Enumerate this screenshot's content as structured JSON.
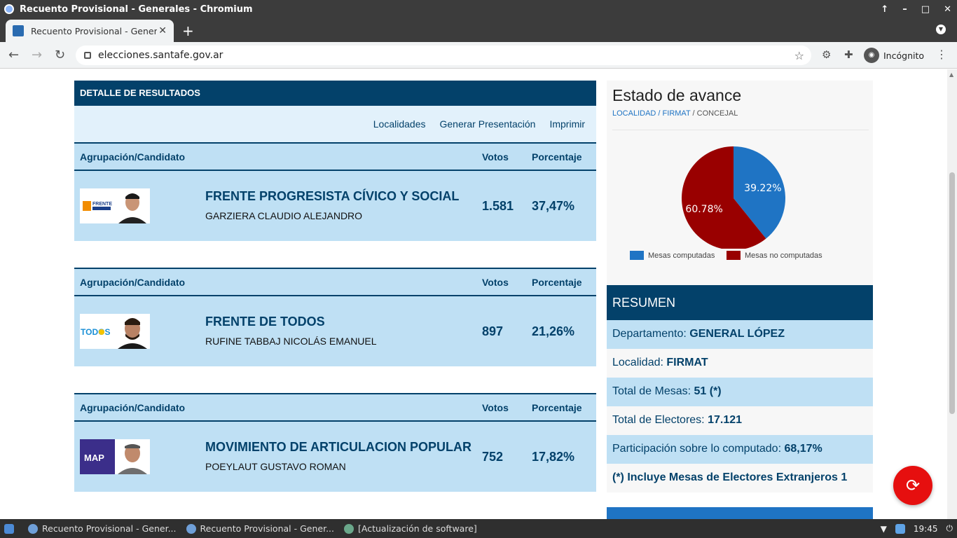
{
  "window": {
    "title": "Recuento Provisional - Generales - Chromium"
  },
  "browser": {
    "tab_title": "Recuento Provisional - Generales",
    "url": "elecciones.santafe.gov.ar",
    "profile_label": "Incógnito"
  },
  "detail": {
    "header": "DETALLE DE RESULTADOS",
    "links": [
      "Localidades",
      "Generar Presentación",
      "Imprimir"
    ],
    "columns": {
      "group": "Agrupación/Candidato",
      "votes": "Votos",
      "pct": "Porcentaje"
    },
    "rows": [
      {
        "party": "FRENTE PROGRESISTA CÍVICO Y SOCIAL",
        "candidate": "GARZIERA CLAUDIO ALEJANDRO",
        "votes": "1.581",
        "pct": "37,47%",
        "logo_text": "FRENTE",
        "logo_color": "#ffffff"
      },
      {
        "party": "FRENTE DE TODOS",
        "candidate": "RUFINE TABBAJ NICOLÁS EMANUEL",
        "votes": "897",
        "pct": "21,26%",
        "logo_text": "TODOS",
        "logo_color": "#ffffff"
      },
      {
        "party": "MOVIMIENTO DE ARTICULACION POPULAR",
        "candidate": "POEYLAUT GUSTAVO ROMAN",
        "votes": "752",
        "pct": "17,82%",
        "logo_text": "MAP",
        "logo_color": "#3b2e8a"
      }
    ]
  },
  "avance": {
    "title": "Estado de avance",
    "crumb_localidad": "LOCALIDAD",
    "crumb_firmat": "FIRMAT",
    "crumb_current": "CONCEJAL",
    "slash": "/",
    "chart_data": {
      "type": "pie",
      "labels": [
        "Mesas computadas",
        "Mesas no computadas"
      ],
      "values": [
        39.22,
        60.78
      ],
      "value_labels": [
        "39.22%",
        "60.78%"
      ],
      "colors": [
        "#1f74c4",
        "#990000"
      ],
      "legend": "bottom"
    }
  },
  "resumen": {
    "header": "RESUMEN",
    "rows": [
      {
        "label": "Departamento: ",
        "value": "GENERAL LÓPEZ"
      },
      {
        "label": "Localidad: ",
        "value": "FIRMAT"
      },
      {
        "label": "Total de Mesas: ",
        "value": "51 (*)"
      },
      {
        "label": "Total de Electores: ",
        "value": "17.121"
      },
      {
        "label": "Participación sobre lo computado: ",
        "value": "68,17%"
      },
      {
        "label": "",
        "value": "(*) Incluye Mesas de Electores Extranjeros 1"
      }
    ]
  },
  "taskbar": {
    "tasks": [
      "Recuento Provisional - Gener...",
      "Recuento Provisional - Gener...",
      "[Actualización de software]"
    ],
    "time": "19:45"
  },
  "colors": {
    "primary": "#03416a",
    "light_blue": "#bfe0f4",
    "pale_blue": "#e2f1fb",
    "refresh_red": "#e60f0f"
  }
}
